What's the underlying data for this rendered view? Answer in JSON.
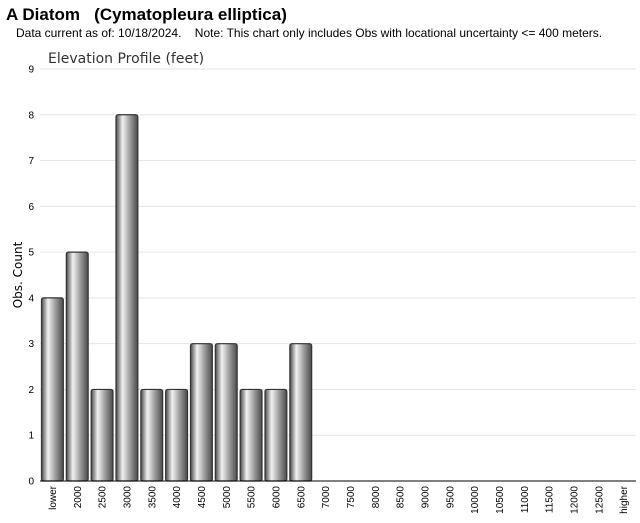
{
  "header": {
    "title": "A Diatom   (Cymatopleura elliptica)",
    "subtitle": "Data current as of: 10/18/2024.    Note: This chart only includes Obs with locational uncertainty <= 400 meters."
  },
  "chart_data": {
    "type": "bar",
    "title": "Elevation Profile (feet)",
    "xlabel": "",
    "ylabel": "Obs. Count",
    "ylim": [
      0,
      9
    ],
    "yticks": [
      0,
      1,
      2,
      3,
      4,
      5,
      6,
      7,
      8,
      9
    ],
    "grid": true,
    "categories": [
      "lower",
      "2000",
      "2500",
      "3000",
      "3500",
      "4000",
      "4500",
      "5000",
      "5500",
      "6000",
      "6500",
      "7000",
      "7500",
      "8000",
      "8500",
      "9000",
      "9500",
      "10000",
      "10500",
      "11000",
      "11500",
      "12000",
      "12500",
      "higher"
    ],
    "values": [
      4,
      5,
      2,
      8,
      2,
      2,
      3,
      3,
      2,
      2,
      3,
      0,
      0,
      0,
      0,
      0,
      0,
      0,
      0,
      0,
      0,
      0,
      0,
      0
    ],
    "colors": {
      "bar_light": "#f2f2f2",
      "bar_mid": "#9a9a9a",
      "bar_dark": "#4a4a4a",
      "bar_edge": "#333333"
    }
  }
}
